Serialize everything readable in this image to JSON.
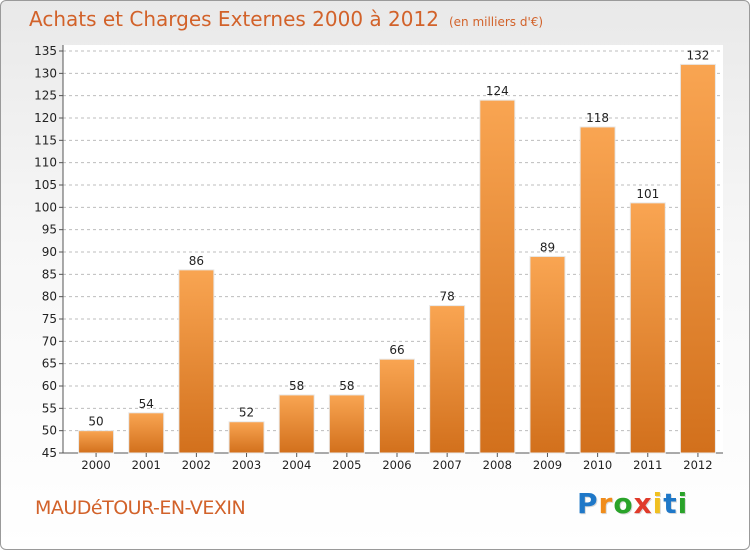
{
  "header": {
    "title": "Achats et Charges Externes 2000 à 2012",
    "unit": "(en milliers d'€)"
  },
  "footer": {
    "commune": "MAUDéTOUR-EN-VEXIN",
    "logo": [
      "P",
      "r",
      "o",
      "x",
      "i",
      "t",
      "i"
    ],
    "logo_colors": [
      "#1f78c8",
      "#f08c1a",
      "#2aa32a",
      "#e03a2a",
      "#f0c020",
      "#1f78c8",
      "#2aa32a"
    ]
  },
  "colors": {
    "bar_light": "#f9a552",
    "bar_dark": "#d2701c",
    "accent": "#d2622a",
    "grid": "#bdbdbd"
  },
  "chart_data": {
    "type": "bar",
    "title": "Achats et Charges Externes 2000 à 2012",
    "subtitle": "(en milliers d'€)",
    "categories": [
      "2000",
      "2001",
      "2002",
      "2003",
      "2004",
      "2005",
      "2006",
      "2007",
      "2008",
      "2009",
      "2010",
      "2011",
      "2012"
    ],
    "values": [
      50,
      54,
      86,
      52,
      58,
      58,
      66,
      78,
      124,
      89,
      118,
      101,
      132
    ],
    "ylim": [
      45,
      135
    ],
    "ytick_step": 5,
    "grid": true,
    "xlabel": "",
    "ylabel": ""
  }
}
